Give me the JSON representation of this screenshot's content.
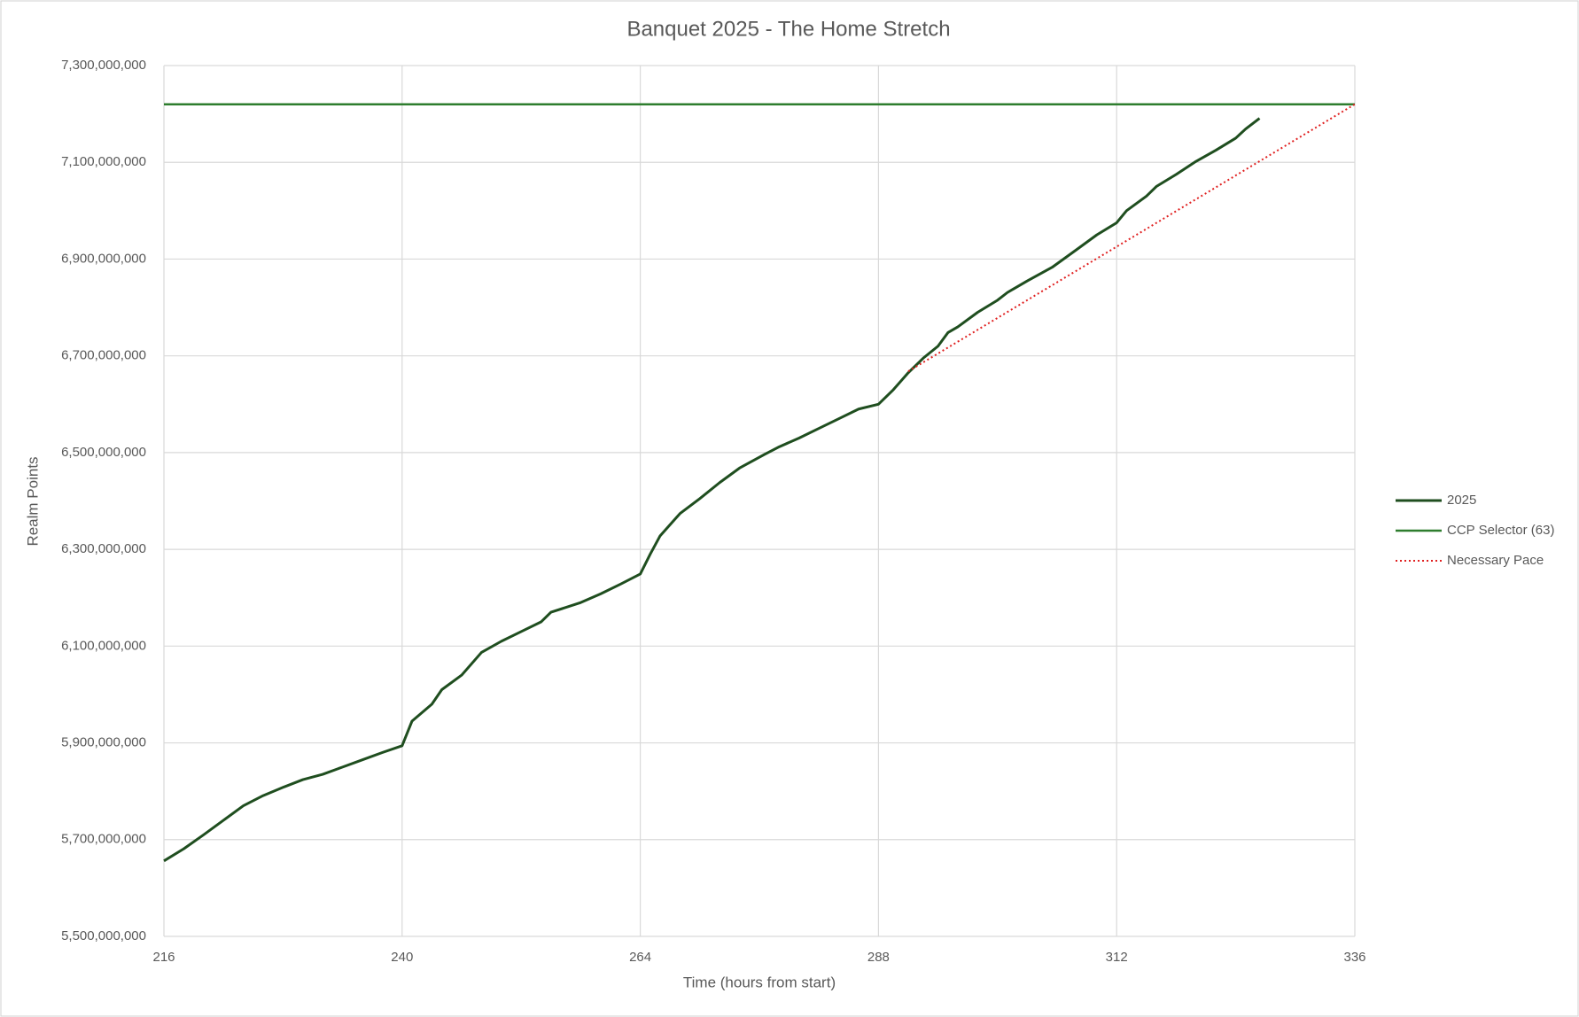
{
  "chart_data": {
    "type": "line",
    "title": "Banquet 2025 - The Home Stretch",
    "x_label": "Time (hours from start)",
    "y_label": "Realm Points",
    "xlim": [
      216,
      336
    ],
    "xticks": [
      216,
      240,
      264,
      288,
      312,
      336
    ],
    "ylim": [
      5500000000,
      7300000000
    ],
    "yticks": [
      {
        "value": 5500000000,
        "label": "5,500,000,000"
      },
      {
        "value": 5700000000,
        "label": "5,700,000,000"
      },
      {
        "value": 5900000000,
        "label": "5,900,000,000"
      },
      {
        "value": 6100000000,
        "label": "6,100,000,000"
      },
      {
        "value": 6300000000,
        "label": "6,300,000,000"
      },
      {
        "value": 6500000000,
        "label": "6,500,000,000"
      },
      {
        "value": 6700000000,
        "label": "6,700,000,000"
      },
      {
        "value": 6900000000,
        "label": "6,900,000,000"
      },
      {
        "value": 7100000000,
        "label": "7,100,000,000"
      },
      {
        "value": 7300000000,
        "label": "7,300,000,000"
      }
    ],
    "grid": true,
    "legend": "right",
    "series": [
      {
        "name": "2025",
        "color": "#1f4e1f",
        "width": 3,
        "dash": "solid",
        "x": [
          216,
          218,
          220,
          222,
          224,
          226,
          228,
          230,
          232,
          234,
          236,
          238,
          240,
          241,
          243,
          244,
          246,
          248,
          250,
          252,
          254,
          255,
          258,
          260,
          262,
          264,
          265,
          266,
          268,
          270,
          272,
          274,
          276.5,
          278,
          280,
          282,
          284,
          286,
          288,
          289.5,
          291,
          292.5,
          294,
          295,
          296,
          298,
          300,
          301,
          303,
          305.5,
          308,
          310,
          312,
          313,
          315,
          316,
          318,
          320,
          322,
          324,
          325,
          326.4
        ],
        "values": [
          5656000000,
          5681000000,
          5710000000,
          5740000000,
          5770000000,
          5791000000,
          5808000000,
          5824000000,
          5835000000,
          5850000000,
          5865000000,
          5880000000,
          5894000000,
          5945000000,
          5980000000,
          6010000000,
          6040000000,
          6087000000,
          6110000000,
          6130000000,
          6150000000,
          6170000000,
          6190000000,
          6208000000,
          6228000000,
          6249000000,
          6290000000,
          6328000000,
          6374000000,
          6405000000,
          6438000000,
          6468000000,
          6496000000,
          6512000000,
          6530000000,
          6550000000,
          6570000000,
          6590000000,
          6600000000,
          6630000000,
          6665000000,
          6695000000,
          6720000000,
          6748000000,
          6760000000,
          6790000000,
          6815000000,
          6831000000,
          6855000000,
          6883000000,
          6920000000,
          6950000000,
          6975000000,
          7000000000,
          7030000000,
          7050000000,
          7075000000,
          7102000000,
          7125000000,
          7150000000,
          7169000000,
          7191000000
        ]
      },
      {
        "name": "CCP Selector (63)",
        "color": "#2e7d2e",
        "width": 2.5,
        "dash": "solid",
        "x": [
          216,
          336
        ],
        "values": [
          7220000000,
          7220000000
        ]
      },
      {
        "name": "Necessary Pace",
        "color": "#e02020",
        "width": 2,
        "dash": "dotted",
        "x": [
          291,
          336
        ],
        "values": [
          6668000000,
          7220000000
        ]
      }
    ]
  }
}
